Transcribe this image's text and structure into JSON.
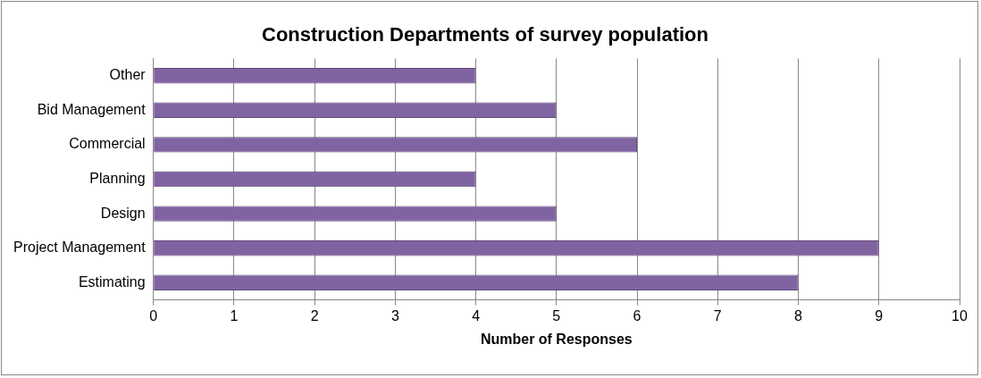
{
  "chart_data": {
    "type": "bar",
    "orientation": "horizontal",
    "title": "Construction Departments of survey population",
    "xlabel": "Number of Responses",
    "categories": [
      "Other",
      "Bid Management",
      "Commercial",
      "Planning",
      "Design",
      "Project Management",
      "Estimating"
    ],
    "values": [
      4,
      5,
      6,
      4,
      5,
      9,
      8
    ],
    "color": "#8064a2",
    "xlim": [
      0,
      10
    ],
    "xticks": [
      0,
      1,
      2,
      3,
      4,
      5,
      6,
      7,
      8,
      9,
      10
    ],
    "grid": "x",
    "legend": false
  }
}
